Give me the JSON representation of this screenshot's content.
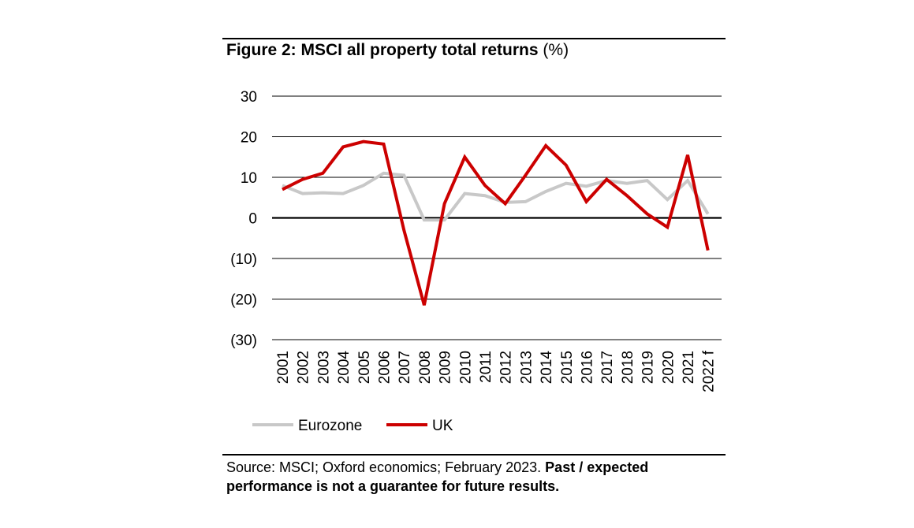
{
  "figure": {
    "title_bold": "Figure 2: MSCI all property total returns",
    "title_unit": " (%)"
  },
  "chart_data": {
    "type": "line",
    "categories": [
      "2001",
      "2002",
      "2003",
      "2004",
      "2005",
      "2006",
      "2007",
      "2008",
      "2009",
      "2010",
      "2011",
      "2012",
      "2013",
      "2014",
      "2015",
      "2016",
      "2017",
      "2018",
      "2019",
      "2020",
      "2021",
      "2022 f"
    ],
    "series": [
      {
        "name": "Eurozone",
        "color": "#c8c8c8",
        "values": [
          8,
          6,
          6.2,
          6,
          8,
          11,
          10.5,
          -0.5,
          -0.5,
          6,
          5.5,
          3.8,
          4,
          6.5,
          8.5,
          7.8,
          9.2,
          8.5,
          9.2,
          4.5,
          9.2,
          1
        ]
      },
      {
        "name": "UK",
        "color": "#cc0000",
        "values": [
          7,
          9.5,
          11,
          17.5,
          18.8,
          18.2,
          -3,
          -21.5,
          3.5,
          15,
          8,
          3.5,
          10.5,
          17.8,
          13,
          4,
          9.5,
          5.5,
          1,
          -2.3,
          15.5,
          -8
        ]
      }
    ],
    "ylim": [
      -30,
      30
    ],
    "yticks": [
      30,
      20,
      10,
      0,
      -10,
      -20,
      -30
    ],
    "ytick_labels": [
      "30",
      "20",
      "10",
      "0",
      "(10)",
      "(20)",
      "(30)"
    ],
    "grid": true,
    "legend_position": "bottom-left"
  },
  "source": {
    "text": "Source: MSCI; Oxford economics; February 2023. ",
    "disclaimer": "Past / expected performance is not a guarantee for future results."
  }
}
